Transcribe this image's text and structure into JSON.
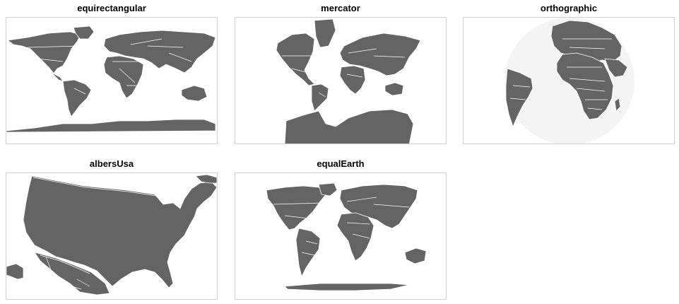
{
  "figure": {
    "panels": [
      {
        "id": "p1",
        "title": "equirectangular"
      },
      {
        "id": "p2",
        "title": "mercator"
      },
      {
        "id": "p3",
        "title": "orthographic"
      },
      {
        "id": "p4",
        "title": "albersUsa"
      },
      {
        "id": "p5",
        "title": "equalEarth"
      }
    ],
    "colors": {
      "land": "#646464",
      "borders": "#ffffff",
      "frame": "#d0d0d0",
      "background": "#ffffff"
    }
  }
}
